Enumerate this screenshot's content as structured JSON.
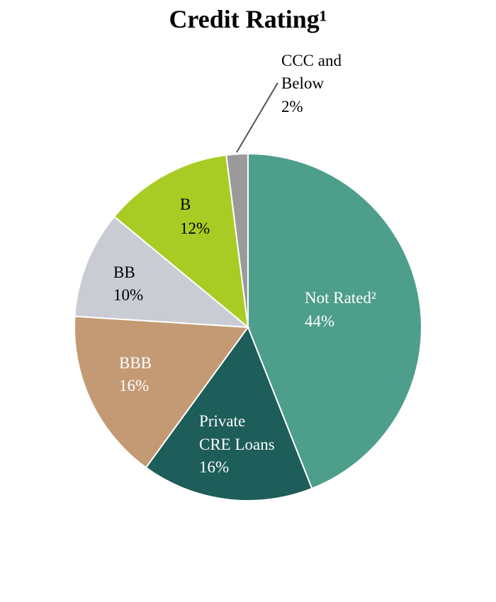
{
  "chart_data": {
    "type": "pie",
    "title": "Credit Rating¹",
    "slices": [
      {
        "label": "Not Rated²",
        "value": 44,
        "value_label": "44%",
        "color": "#4d9e8a",
        "text_color": "#ffffff"
      },
      {
        "label": "Private CRE Loans",
        "value": 16,
        "value_label": "16%",
        "color": "#1d5d5a",
        "text_color": "#ffffff"
      },
      {
        "label": "BBB",
        "value": 16,
        "value_label": "16%",
        "color": "#c39a74",
        "text_color": "#ffffff"
      },
      {
        "label": "BB",
        "value": 10,
        "value_label": "10%",
        "color": "#c9ccd3",
        "text_color": "#000000"
      },
      {
        "label": "B",
        "value": 12,
        "value_label": "12%",
        "color": "#a9cc25",
        "text_color": "#000000"
      },
      {
        "label": "CCC and Below",
        "value": 2,
        "value_label": "2%",
        "color": "#9a9a9a",
        "text_color": "#000000"
      }
    ],
    "start_angle": "12 o'clock, clockwise"
  }
}
